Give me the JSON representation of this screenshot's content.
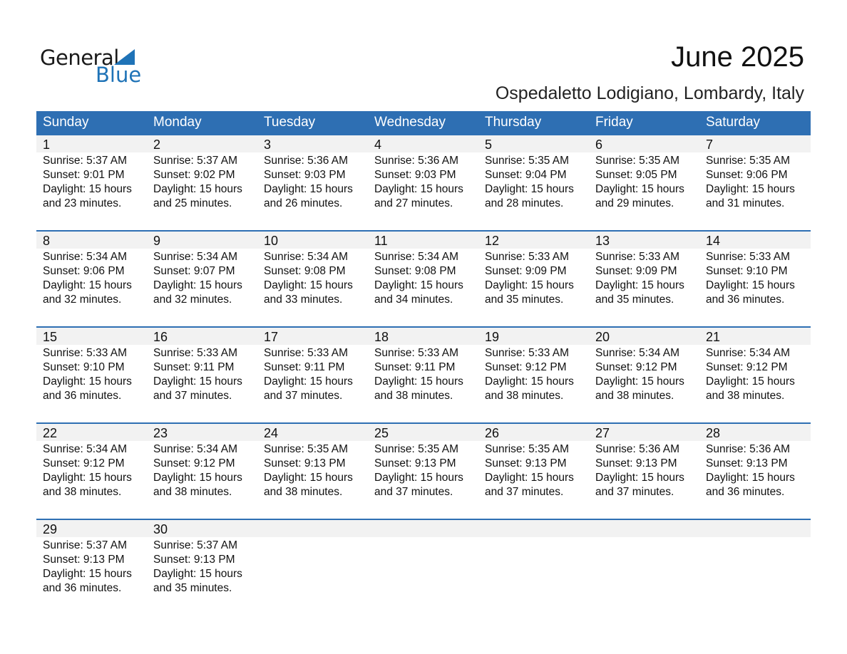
{
  "logo": {
    "text_general": "General",
    "text_blue": "Blue"
  },
  "header": {
    "title": "June 2025",
    "location": "Ospedaletto Lodigiano, Lombardy, Italy"
  },
  "colors": {
    "accent": "#2e6fb3",
    "strip": "#f2f2f2",
    "logo_blue": "#1f73b7"
  },
  "weekdays": [
    "Sunday",
    "Monday",
    "Tuesday",
    "Wednesday",
    "Thursday",
    "Friday",
    "Saturday"
  ],
  "weeks": [
    [
      {
        "day": "1",
        "sunrise": "Sunrise: 5:37 AM",
        "sunset": "Sunset: 9:01 PM",
        "daylight": "Daylight: 15 hours",
        "minutes": "and 23 minutes."
      },
      {
        "day": "2",
        "sunrise": "Sunrise: 5:37 AM",
        "sunset": "Sunset: 9:02 PM",
        "daylight": "Daylight: 15 hours",
        "minutes": "and 25 minutes."
      },
      {
        "day": "3",
        "sunrise": "Sunrise: 5:36 AM",
        "sunset": "Sunset: 9:03 PM",
        "daylight": "Daylight: 15 hours",
        "minutes": "and 26 minutes."
      },
      {
        "day": "4",
        "sunrise": "Sunrise: 5:36 AM",
        "sunset": "Sunset: 9:03 PM",
        "daylight": "Daylight: 15 hours",
        "minutes": "and 27 minutes."
      },
      {
        "day": "5",
        "sunrise": "Sunrise: 5:35 AM",
        "sunset": "Sunset: 9:04 PM",
        "daylight": "Daylight: 15 hours",
        "minutes": "and 28 minutes."
      },
      {
        "day": "6",
        "sunrise": "Sunrise: 5:35 AM",
        "sunset": "Sunset: 9:05 PM",
        "daylight": "Daylight: 15 hours",
        "minutes": "and 29 minutes."
      },
      {
        "day": "7",
        "sunrise": "Sunrise: 5:35 AM",
        "sunset": "Sunset: 9:06 PM",
        "daylight": "Daylight: 15 hours",
        "minutes": "and 31 minutes."
      }
    ],
    [
      {
        "day": "8",
        "sunrise": "Sunrise: 5:34 AM",
        "sunset": "Sunset: 9:06 PM",
        "daylight": "Daylight: 15 hours",
        "minutes": "and 32 minutes."
      },
      {
        "day": "9",
        "sunrise": "Sunrise: 5:34 AM",
        "sunset": "Sunset: 9:07 PM",
        "daylight": "Daylight: 15 hours",
        "minutes": "and 32 minutes."
      },
      {
        "day": "10",
        "sunrise": "Sunrise: 5:34 AM",
        "sunset": "Sunset: 9:08 PM",
        "daylight": "Daylight: 15 hours",
        "minutes": "and 33 minutes."
      },
      {
        "day": "11",
        "sunrise": "Sunrise: 5:34 AM",
        "sunset": "Sunset: 9:08 PM",
        "daylight": "Daylight: 15 hours",
        "minutes": "and 34 minutes."
      },
      {
        "day": "12",
        "sunrise": "Sunrise: 5:33 AM",
        "sunset": "Sunset: 9:09 PM",
        "daylight": "Daylight: 15 hours",
        "minutes": "and 35 minutes."
      },
      {
        "day": "13",
        "sunrise": "Sunrise: 5:33 AM",
        "sunset": "Sunset: 9:09 PM",
        "daylight": "Daylight: 15 hours",
        "minutes": "and 35 minutes."
      },
      {
        "day": "14",
        "sunrise": "Sunrise: 5:33 AM",
        "sunset": "Sunset: 9:10 PM",
        "daylight": "Daylight: 15 hours",
        "minutes": "and 36 minutes."
      }
    ],
    [
      {
        "day": "15",
        "sunrise": "Sunrise: 5:33 AM",
        "sunset": "Sunset: 9:10 PM",
        "daylight": "Daylight: 15 hours",
        "minutes": "and 36 minutes."
      },
      {
        "day": "16",
        "sunrise": "Sunrise: 5:33 AM",
        "sunset": "Sunset: 9:11 PM",
        "daylight": "Daylight: 15 hours",
        "minutes": "and 37 minutes."
      },
      {
        "day": "17",
        "sunrise": "Sunrise: 5:33 AM",
        "sunset": "Sunset: 9:11 PM",
        "daylight": "Daylight: 15 hours",
        "minutes": "and 37 minutes."
      },
      {
        "day": "18",
        "sunrise": "Sunrise: 5:33 AM",
        "sunset": "Sunset: 9:11 PM",
        "daylight": "Daylight: 15 hours",
        "minutes": "and 38 minutes."
      },
      {
        "day": "19",
        "sunrise": "Sunrise: 5:33 AM",
        "sunset": "Sunset: 9:12 PM",
        "daylight": "Daylight: 15 hours",
        "minutes": "and 38 minutes."
      },
      {
        "day": "20",
        "sunrise": "Sunrise: 5:34 AM",
        "sunset": "Sunset: 9:12 PM",
        "daylight": "Daylight: 15 hours",
        "minutes": "and 38 minutes."
      },
      {
        "day": "21",
        "sunrise": "Sunrise: 5:34 AM",
        "sunset": "Sunset: 9:12 PM",
        "daylight": "Daylight: 15 hours",
        "minutes": "and 38 minutes."
      }
    ],
    [
      {
        "day": "22",
        "sunrise": "Sunrise: 5:34 AM",
        "sunset": "Sunset: 9:12 PM",
        "daylight": "Daylight: 15 hours",
        "minutes": "and 38 minutes."
      },
      {
        "day": "23",
        "sunrise": "Sunrise: 5:34 AM",
        "sunset": "Sunset: 9:12 PM",
        "daylight": "Daylight: 15 hours",
        "minutes": "and 38 minutes."
      },
      {
        "day": "24",
        "sunrise": "Sunrise: 5:35 AM",
        "sunset": "Sunset: 9:13 PM",
        "daylight": "Daylight: 15 hours",
        "minutes": "and 38 minutes."
      },
      {
        "day": "25",
        "sunrise": "Sunrise: 5:35 AM",
        "sunset": "Sunset: 9:13 PM",
        "daylight": "Daylight: 15 hours",
        "minutes": "and 37 minutes."
      },
      {
        "day": "26",
        "sunrise": "Sunrise: 5:35 AM",
        "sunset": "Sunset: 9:13 PM",
        "daylight": "Daylight: 15 hours",
        "minutes": "and 37 minutes."
      },
      {
        "day": "27",
        "sunrise": "Sunrise: 5:36 AM",
        "sunset": "Sunset: 9:13 PM",
        "daylight": "Daylight: 15 hours",
        "minutes": "and 37 minutes."
      },
      {
        "day": "28",
        "sunrise": "Sunrise: 5:36 AM",
        "sunset": "Sunset: 9:13 PM",
        "daylight": "Daylight: 15 hours",
        "minutes": "and 36 minutes."
      }
    ],
    [
      {
        "day": "29",
        "sunrise": "Sunrise: 5:37 AM",
        "sunset": "Sunset: 9:13 PM",
        "daylight": "Daylight: 15 hours",
        "minutes": "and 36 minutes."
      },
      {
        "day": "30",
        "sunrise": "Sunrise: 5:37 AM",
        "sunset": "Sunset: 9:13 PM",
        "daylight": "Daylight: 15 hours",
        "minutes": "and 35 minutes."
      }
    ]
  ]
}
